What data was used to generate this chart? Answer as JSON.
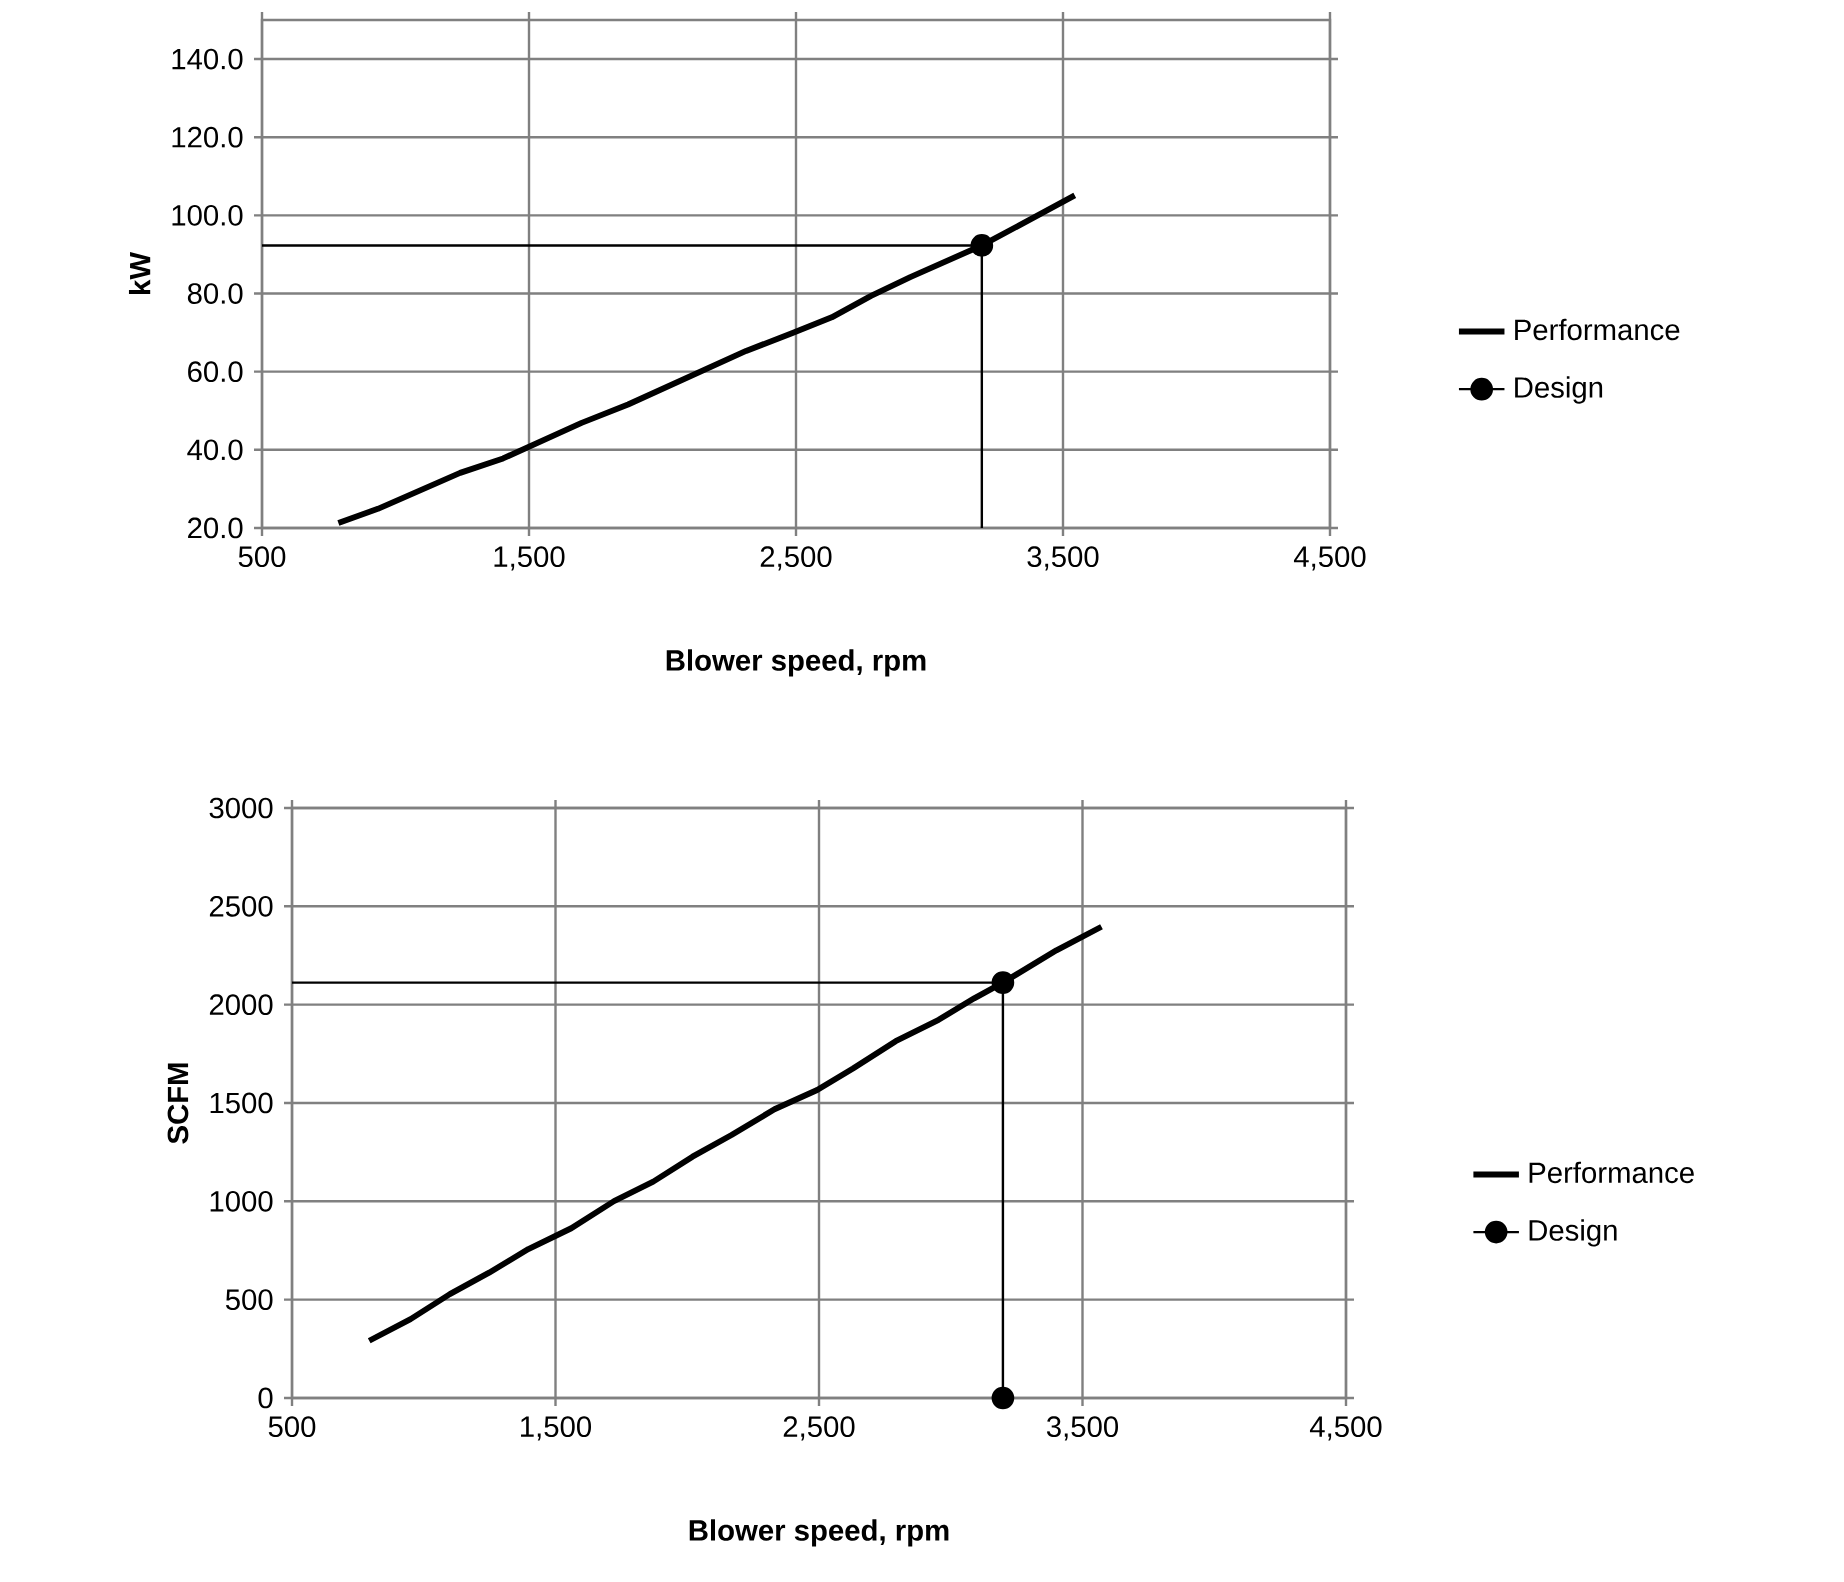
{
  "chart_data": [
    {
      "type": "line",
      "xlabel": "Blower speed, rpm",
      "ylabel": "kW",
      "xlim": [
        500,
        4500
      ],
      "xticks": [
        500,
        {
          "value": 1500,
          "label": "1,500"
        },
        {
          "value": 2500,
          "label": "2,500"
        },
        {
          "value": 3500,
          "label": "3,500"
        },
        {
          "value": 4500,
          "label": "4,500"
        }
      ],
      "ylim": [
        20,
        150
      ],
      "yticks": [
        {
          "value": 20,
          "label": "20.0"
        },
        {
          "value": 40,
          "label": "40.0"
        },
        {
          "value": 60,
          "label": "60.0"
        },
        {
          "value": 80,
          "label": "80.0"
        },
        {
          "value": 100,
          "label": "100.0"
        },
        {
          "value": 120,
          "label": "120.0"
        },
        {
          "value": 140,
          "label": "140.0"
        }
      ],
      "grid": true,
      "legend": "right",
      "series": [
        {
          "name": "Performance",
          "color": "#000000",
          "marker": "none",
          "x": [
            786,
            934,
            1242,
            1403,
            1697,
            1871,
            2313,
            2487,
            2634,
            2781,
            2928,
            3196,
            3544
          ],
          "values": [
            21.3,
            24.9,
            34.1,
            37.8,
            46.9,
            51.6,
            65.3,
            69.9,
            73.9,
            79.4,
            84.2,
            92.3,
            105.1
          ]
        },
        {
          "name": "Design",
          "color": "#000000",
          "marker": "circle",
          "x": [
            3196
          ],
          "values": [
            92.3
          ]
        },
        {
          "color": "#000000",
          "marker": "none",
          "x": [
            500,
            3196,
            3196
          ],
          "values": [
            92.3,
            92.3,
            20
          ]
        }
      ]
    },
    {
      "type": "line",
      "xlabel": "Blower speed, rpm",
      "ylabel": "SCFM",
      "xlim": [
        500,
        4500
      ],
      "xticks": [
        500,
        {
          "value": 1500,
          "label": "1,500"
        },
        {
          "value": 2500,
          "label": "2,500"
        },
        {
          "value": 3500,
          "label": "3,500"
        },
        {
          "value": 4500,
          "label": "4,500"
        }
      ],
      "ylim": [
        0,
        3000
      ],
      "yticks": [
        0,
        500,
        1000,
        1500,
        2000,
        2500,
        3000
      ],
      "grid": true,
      "legend": "right",
      "series": [
        {
          "name": "Performance",
          "color": "#000000",
          "marker": "none",
          "x": [
            793,
            950,
            1099,
            1248,
            1397,
            1560,
            1722,
            1871,
            2020,
            2168,
            2331,
            2493,
            2629,
            2791,
            2954,
            3089,
            3198,
            3401,
            3572
          ],
          "values": [
            291,
            401,
            528,
            637,
            757,
            863,
            1001,
            1100,
            1227,
            1337,
            1468,
            1566,
            1675,
            1814,
            1923,
            2032,
            2112,
            2276,
            2396
          ]
        },
        {
          "name": "Design",
          "color": "#000000",
          "marker": "circle",
          "x": [
            3198,
            3198
          ],
          "values": [
            2112,
            0
          ]
        },
        {
          "color": "#000000",
          "marker": "none",
          "x": [
            500,
            3198
          ],
          "values": [
            2112,
            2112
          ]
        }
      ]
    }
  ]
}
